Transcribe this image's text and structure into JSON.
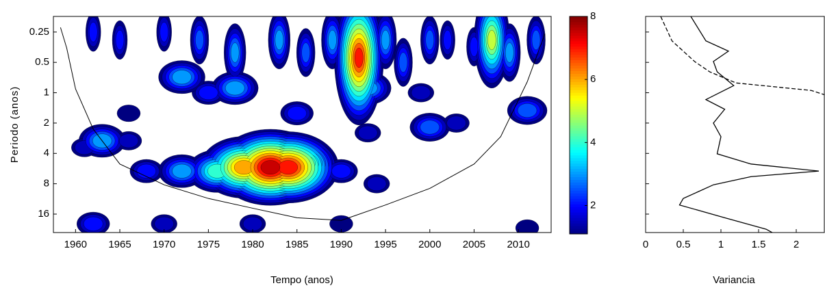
{
  "chart_data": [
    {
      "type": "wavelet",
      "xlabel": "Tempo (anos)",
      "ylabel": "Periodo (anos)",
      "xlim": [
        1957.5,
        2013.7
      ],
      "xticks": [
        1960,
        1965,
        1970,
        1975,
        1980,
        1985,
        1990,
        1995,
        2000,
        2005,
        2010
      ],
      "ylim": [
        0.175,
        24.4
      ],
      "yscale": "log2",
      "yreversed": true,
      "yticks": [
        0.25,
        0.5,
        1,
        2,
        4,
        8,
        16
      ],
      "colormap": "jet",
      "power": {
        "x": [
          1968,
          1972,
          1976,
          1979,
          1982,
          1984,
          1986,
          1980,
          1984,
          1990,
          1994,
          1963,
          1966,
          1961,
          1962,
          1970,
          1980,
          1990,
          2011,
          1975,
          1978,
          1985,
          1993,
          1999,
          2000,
          2003,
          2011,
          1972,
          1966,
          1993,
          1962,
          1965,
          1970,
          1974,
          1978,
          1983,
          1986,
          1989,
          1991,
          1992,
          1995,
          1997,
          2000,
          2002,
          2005,
          2007,
          2009,
          2012
        ],
        "y": [
          6,
          6,
          6,
          5.5,
          5.5,
          5.5,
          5,
          4,
          3.5,
          6,
          8,
          3,
          3,
          3.5,
          20,
          20,
          20,
          20,
          22,
          1,
          0.9,
          1.6,
          0.9,
          1,
          2.2,
          2,
          1.5,
          0.7,
          1.6,
          2.5,
          0.25,
          0.3,
          0.25,
          0.3,
          0.4,
          0.3,
          0.4,
          0.3,
          0.4,
          0.45,
          0.3,
          0.5,
          0.3,
          0.3,
          0.35,
          0.3,
          0.4,
          0.3
        ],
        "values": [
          2,
          3,
          4,
          6,
          7.5,
          7,
          4,
          3,
          2,
          2,
          1.5,
          3,
          1.5,
          1.5,
          2,
          1.5,
          1.5,
          1.3,
          1.3,
          2,
          3,
          2,
          3,
          1.5,
          2.5,
          1.5,
          2.5,
          3,
          1.3,
          1.5,
          2,
          2,
          2,
          2.5,
          3,
          3,
          2.5,
          3,
          3,
          7,
          3,
          2.5,
          2.5,
          2,
          2,
          5,
          3,
          2.5
        ]
      },
      "cone": {
        "x": [
          1958.3,
          1959,
          1960,
          1962,
          1965,
          1970,
          1975,
          1980,
          1985,
          1990,
          1995,
          2000,
          2005,
          2008,
          2011,
          2013
        ],
        "y": [
          0.225,
          0.36,
          0.917,
          2.3,
          5.1,
          8.2,
          11.2,
          14,
          17.4,
          18.5,
          13,
          8.9,
          5.1,
          2.73,
          0.78,
          0.26
        ]
      }
    },
    {
      "type": "colorbar",
      "colormap": "jet",
      "ylim": [
        1.1,
        8
      ],
      "yticks": [
        2,
        4,
        6,
        8
      ]
    },
    {
      "type": "line",
      "xlabel": "Variancia",
      "xlim": [
        0,
        2.38
      ],
      "xticks": [
        0,
        0.5,
        1,
        1.5,
        2
      ],
      "ylim": [
        0.175,
        24.4
      ],
      "yscale": "log2",
      "yreversed": true,
      "yticks": [
        0.25,
        0.5,
        1,
        2,
        4,
        8,
        16
      ],
      "series": [
        {
          "color": "#000000",
          "style": "solid",
          "y": [
            0.175,
            0.306,
            0.387,
            0.49,
            0.62,
            0.85,
            1.17,
            1.46,
            2.0,
            2.73,
            4.04,
            5.1,
            5.99,
            6.8,
            8.2,
            11.2,
            13.0,
            17.4,
            22.6,
            24.4
          ],
          "values": [
            0.6,
            0.8,
            1.1,
            0.9,
            0.95,
            1.17,
            0.8,
            1.05,
            0.9,
            1.0,
            0.95,
            1.4,
            2.3,
            1.4,
            0.9,
            0.5,
            0.45,
            1.05,
            1.6,
            1.68
          ]
        },
        {
          "color": "#000000",
          "style": "dashed",
          "y": [
            0.175,
            0.306,
            0.49,
            0.62,
            0.8,
            0.95,
            1.05
          ],
          "values": [
            0.2,
            0.35,
            0.65,
            0.85,
            1.2,
            2.2,
            2.38
          ]
        }
      ]
    }
  ]
}
